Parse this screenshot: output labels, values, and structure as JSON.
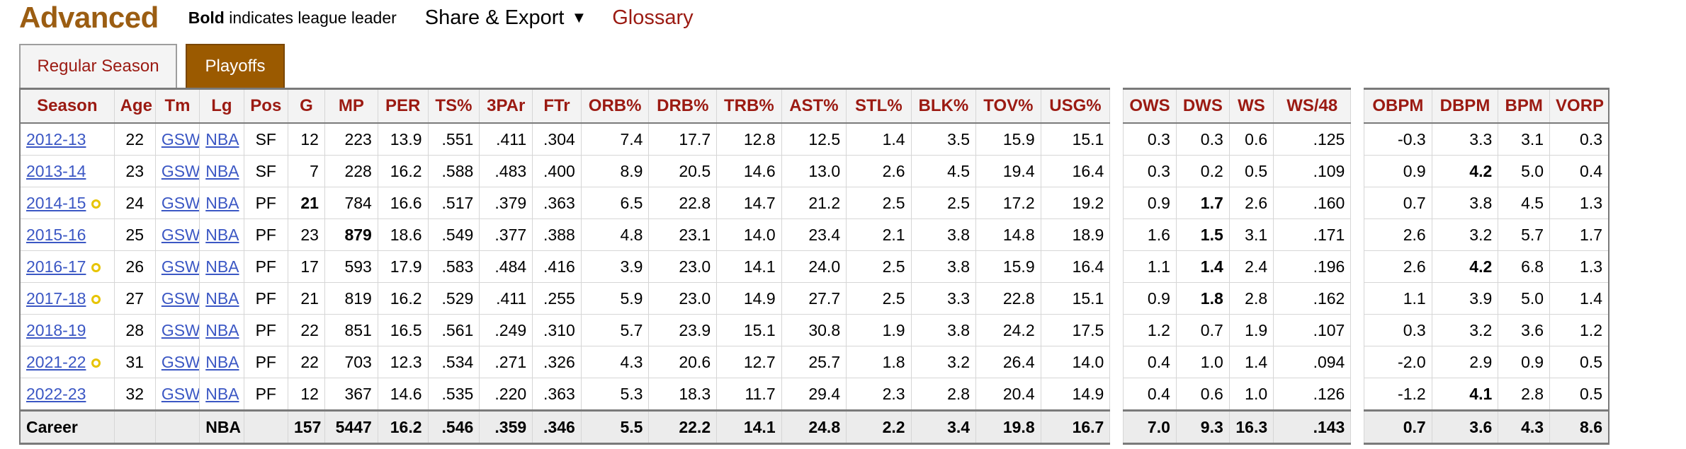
{
  "header": {
    "title": "Advanced",
    "bold_word": "Bold",
    "note_rest": " indicates league leader",
    "share_label": "Share & Export",
    "share_arrow": "▼",
    "glossary_label": "Glossary"
  },
  "tabs": [
    {
      "label": "Regular Season",
      "active": false
    },
    {
      "label": "Playoffs",
      "active": true
    }
  ],
  "columns": [
    "Season",
    "Age",
    "Tm",
    "Lg",
    "Pos",
    "G",
    "MP",
    "PER",
    "TS%",
    "3PAr",
    "FTr",
    "ORB%",
    "DRB%",
    "TRB%",
    "AST%",
    "STL%",
    "BLK%",
    "TOV%",
    "USG%",
    "",
    "OWS",
    "DWS",
    "WS",
    "WS/48",
    "",
    "OBPM",
    "DBPM",
    "BPM",
    "VORP"
  ],
  "rows": [
    {
      "season": "2012-13",
      "award": false,
      "cells": [
        "22",
        "GSW",
        "NBA",
        "SF",
        "12",
        "223",
        "13.9",
        ".551",
        ".411",
        ".304",
        "7.4",
        "17.7",
        "12.8",
        "12.5",
        "1.4",
        "3.5",
        "15.9",
        "15.1",
        "",
        "0.3",
        "0.3",
        "0.6",
        ".125",
        "",
        "-0.3",
        "3.3",
        "3.1",
        "0.3"
      ],
      "bold": []
    },
    {
      "season": "2013-14",
      "award": false,
      "cells": [
        "23",
        "GSW",
        "NBA",
        "SF",
        "7",
        "228",
        "16.2",
        ".588",
        ".483",
        ".400",
        "8.9",
        "20.5",
        "14.6",
        "13.0",
        "2.6",
        "4.5",
        "19.4",
        "16.4",
        "",
        "0.3",
        "0.2",
        "0.5",
        ".109",
        "",
        "0.9",
        "4.2",
        "5.0",
        "0.4"
      ],
      "bold": [
        25
      ]
    },
    {
      "season": "2014-15",
      "award": true,
      "cells": [
        "24",
        "GSW",
        "NBA",
        "PF",
        "21",
        "784",
        "16.6",
        ".517",
        ".379",
        ".363",
        "6.5",
        "22.8",
        "14.7",
        "21.2",
        "2.5",
        "2.5",
        "17.2",
        "19.2",
        "",
        "0.9",
        "1.7",
        "2.6",
        ".160",
        "",
        "0.7",
        "3.8",
        "4.5",
        "1.3"
      ],
      "bold": [
        4,
        20
      ]
    },
    {
      "season": "2015-16",
      "award": false,
      "cells": [
        "25",
        "GSW",
        "NBA",
        "PF",
        "23",
        "879",
        "18.6",
        ".549",
        ".377",
        ".388",
        "4.8",
        "23.1",
        "14.0",
        "23.4",
        "2.1",
        "3.8",
        "14.8",
        "18.9",
        "",
        "1.6",
        "1.5",
        "3.1",
        ".171",
        "",
        "2.6",
        "3.2",
        "5.7",
        "1.7"
      ],
      "bold": [
        5,
        20
      ]
    },
    {
      "season": "2016-17",
      "award": true,
      "cells": [
        "26",
        "GSW",
        "NBA",
        "PF",
        "17",
        "593",
        "17.9",
        ".583",
        ".484",
        ".416",
        "3.9",
        "23.0",
        "14.1",
        "24.0",
        "2.5",
        "3.8",
        "15.9",
        "16.4",
        "",
        "1.1",
        "1.4",
        "2.4",
        ".196",
        "",
        "2.6",
        "4.2",
        "6.8",
        "1.3"
      ],
      "bold": [
        20,
        25
      ]
    },
    {
      "season": "2017-18",
      "award": true,
      "cells": [
        "27",
        "GSW",
        "NBA",
        "PF",
        "21",
        "819",
        "16.2",
        ".529",
        ".411",
        ".255",
        "5.9",
        "23.0",
        "14.9",
        "27.7",
        "2.5",
        "3.3",
        "22.8",
        "15.1",
        "",
        "0.9",
        "1.8",
        "2.8",
        ".162",
        "",
        "1.1",
        "3.9",
        "5.0",
        "1.4"
      ],
      "bold": [
        20
      ]
    },
    {
      "season": "2018-19",
      "award": false,
      "cells": [
        "28",
        "GSW",
        "NBA",
        "PF",
        "22",
        "851",
        "16.5",
        ".561",
        ".249",
        ".310",
        "5.7",
        "23.9",
        "15.1",
        "30.8",
        "1.9",
        "3.8",
        "24.2",
        "17.5",
        "",
        "1.2",
        "0.7",
        "1.9",
        ".107",
        "",
        "0.3",
        "3.2",
        "3.6",
        "1.2"
      ],
      "bold": []
    },
    {
      "season": "2021-22",
      "award": true,
      "cells": [
        "31",
        "GSW",
        "NBA",
        "PF",
        "22",
        "703",
        "12.3",
        ".534",
        ".271",
        ".326",
        "4.3",
        "20.6",
        "12.7",
        "25.7",
        "1.8",
        "3.2",
        "26.4",
        "14.0",
        "",
        "0.4",
        "1.0",
        "1.4",
        ".094",
        "",
        "-2.0",
        "2.9",
        "0.9",
        "0.5"
      ],
      "bold": []
    },
    {
      "season": "2022-23",
      "award": false,
      "cells": [
        "32",
        "GSW",
        "NBA",
        "PF",
        "12",
        "367",
        "14.6",
        ".535",
        ".220",
        ".363",
        "5.3",
        "18.3",
        "11.7",
        "29.4",
        "2.3",
        "2.8",
        "20.4",
        "14.9",
        "",
        "0.4",
        "0.6",
        "1.0",
        ".126",
        "",
        "-1.2",
        "4.1",
        "2.8",
        "0.5"
      ],
      "bold": [
        25
      ]
    }
  ],
  "career": {
    "label": "Career",
    "cells": [
      "",
      "",
      "NBA",
      "",
      "157",
      "5447",
      "16.2",
      ".546",
      ".359",
      ".346",
      "5.5",
      "22.2",
      "14.1",
      "24.8",
      "2.2",
      "3.4",
      "19.8",
      "16.7",
      "",
      "7.0",
      "9.3",
      "16.3",
      ".143",
      "",
      "0.7",
      "3.6",
      "4.3",
      "8.6"
    ]
  },
  "colors": {
    "title": "#9b5d12",
    "header_text": "#9b1a12",
    "active_tab": "#9b5a00",
    "link": "#3b57c4",
    "award_ring": "#e7c400"
  }
}
